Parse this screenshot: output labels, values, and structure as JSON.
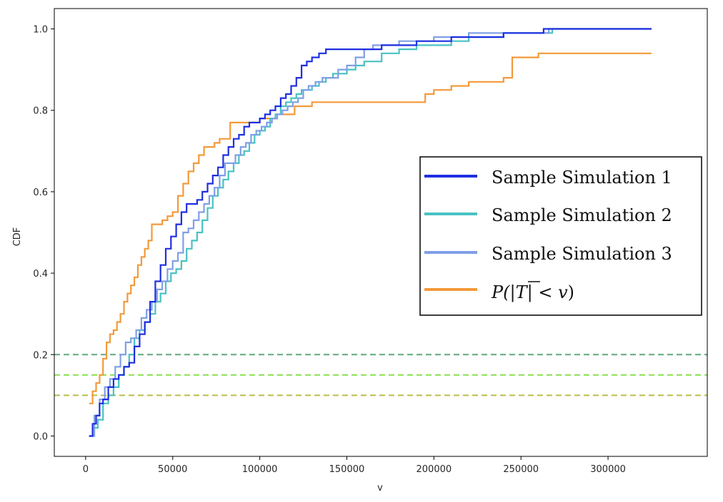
{
  "chart_data": {
    "type": "line",
    "title": "",
    "xlabel": "v",
    "ylabel": "CDF",
    "xlim": [
      -18000,
      357000
    ],
    "ylim": [
      -0.05,
      1.05
    ],
    "xticks": [
      0,
      50000,
      100000,
      150000,
      200000,
      250000,
      300000
    ],
    "xtick_labels": [
      "0",
      "50000",
      "100000",
      "150000",
      "200000",
      "250000",
      "300000"
    ],
    "yticks": [
      0.0,
      0.2,
      0.4,
      0.6,
      0.8,
      1.0
    ],
    "ytick_labels": [
      "0.0",
      "0.2",
      "0.4",
      "0.6",
      "0.8",
      "1.0"
    ],
    "legend_position": "center-right",
    "series": [
      {
        "name": "Sample Simulation 1",
        "color": "#1f2fe0",
        "x": [
          2000,
          4000,
          6000,
          8000,
          10000,
          13000,
          16000,
          19000,
          22000,
          25000,
          28000,
          31000,
          34000,
          37000,
          40000,
          43000,
          46000,
          49000,
          52000,
          55000,
          58000,
          61000,
          64000,
          67000,
          70000,
          73000,
          76000,
          79000,
          82000,
          85000,
          88000,
          91000,
          94000,
          97000,
          100000,
          103000,
          106000,
          109000,
          112000,
          115000,
          118000,
          121000,
          124000,
          127000,
          130000,
          134000,
          138000,
          142000,
          146000,
          150000,
          160000,
          170000,
          180000,
          190000,
          200000,
          210000,
          220000,
          230000,
          240000,
          250000,
          263000,
          270000,
          325000
        ],
        "y": [
          0.0,
          0.03,
          0.05,
          0.08,
          0.09,
          0.12,
          0.14,
          0.15,
          0.17,
          0.18,
          0.22,
          0.25,
          0.28,
          0.33,
          0.38,
          0.42,
          0.46,
          0.49,
          0.52,
          0.55,
          0.57,
          0.57,
          0.58,
          0.6,
          0.62,
          0.64,
          0.66,
          0.69,
          0.71,
          0.73,
          0.74,
          0.76,
          0.77,
          0.77,
          0.78,
          0.79,
          0.8,
          0.81,
          0.83,
          0.84,
          0.86,
          0.88,
          0.91,
          0.92,
          0.93,
          0.94,
          0.95,
          0.95,
          0.95,
          0.95,
          0.95,
          0.96,
          0.96,
          0.97,
          0.97,
          0.98,
          0.98,
          0.98,
          0.99,
          0.99,
          1.0,
          1.0,
          1.0
        ]
      },
      {
        "name": "Sample Simulation 2",
        "color": "#49c2c2",
        "x": [
          2000,
          4000,
          7000,
          10000,
          13000,
          16000,
          19000,
          22000,
          25000,
          28000,
          31000,
          34000,
          37000,
          40000,
          43000,
          46000,
          49000,
          52000,
          55000,
          58000,
          61000,
          64000,
          67000,
          70000,
          73000,
          76000,
          79000,
          82000,
          85000,
          88000,
          91000,
          94000,
          97000,
          100000,
          103000,
          106000,
          109000,
          112000,
          115000,
          118000,
          121000,
          124000,
          127000,
          130000,
          134000,
          138000,
          142000,
          146000,
          150000,
          155000,
          160000,
          170000,
          180000,
          190000,
          200000,
          210000,
          220000,
          230000,
          240000,
          250000,
          260000,
          268000,
          325000
        ],
        "y": [
          0.0,
          0.02,
          0.04,
          0.08,
          0.1,
          0.12,
          0.15,
          0.17,
          0.2,
          0.24,
          0.26,
          0.28,
          0.3,
          0.33,
          0.35,
          0.38,
          0.4,
          0.41,
          0.43,
          0.46,
          0.48,
          0.5,
          0.53,
          0.56,
          0.59,
          0.61,
          0.63,
          0.65,
          0.67,
          0.69,
          0.7,
          0.72,
          0.74,
          0.75,
          0.76,
          0.78,
          0.79,
          0.81,
          0.82,
          0.83,
          0.84,
          0.85,
          0.85,
          0.86,
          0.87,
          0.88,
          0.89,
          0.89,
          0.9,
          0.91,
          0.92,
          0.94,
          0.95,
          0.96,
          0.96,
          0.97,
          0.98,
          0.98,
          0.99,
          0.99,
          0.99,
          1.0,
          1.0
        ]
      },
      {
        "name": "Sample Simulation 3",
        "color": "#7f9fe6",
        "x": [
          2000,
          5000,
          8000,
          11000,
          14000,
          17000,
          20000,
          23000,
          26000,
          29000,
          32000,
          35000,
          38000,
          41000,
          44000,
          47000,
          50000,
          53000,
          56000,
          59000,
          62000,
          65000,
          68000,
          71000,
          74000,
          77000,
          80000,
          83000,
          86000,
          89000,
          92000,
          95000,
          98000,
          101000,
          104000,
          107000,
          110000,
          113000,
          116000,
          119000,
          122000,
          125000,
          128000,
          132000,
          136000,
          140000,
          145000,
          150000,
          155000,
          160000,
          165000,
          170000,
          180000,
          190000,
          200000,
          210000,
          220000,
          230000,
          240000,
          250000,
          260000,
          266000,
          325000
        ],
        "y": [
          0.0,
          0.05,
          0.09,
          0.12,
          0.14,
          0.17,
          0.2,
          0.23,
          0.24,
          0.26,
          0.29,
          0.31,
          0.33,
          0.36,
          0.38,
          0.41,
          0.43,
          0.45,
          0.5,
          0.51,
          0.53,
          0.55,
          0.57,
          0.59,
          0.61,
          0.64,
          0.67,
          0.67,
          0.69,
          0.71,
          0.72,
          0.74,
          0.75,
          0.76,
          0.77,
          0.78,
          0.79,
          0.8,
          0.81,
          0.82,
          0.83,
          0.85,
          0.86,
          0.87,
          0.88,
          0.88,
          0.9,
          0.91,
          0.93,
          0.95,
          0.96,
          0.96,
          0.97,
          0.97,
          0.98,
          0.98,
          0.99,
          0.99,
          0.99,
          0.99,
          0.99,
          1.0,
          1.0
        ]
      },
      {
        "name": "P(|T̄| < v)",
        "legend_parts": [
          "P(|",
          "T",
          "| < ",
          "v",
          ")"
        ],
        "color": "#f39a3a",
        "x": [
          2000,
          4000,
          6000,
          8000,
          10000,
          12000,
          14000,
          16000,
          18000,
          20000,
          22000,
          24000,
          26000,
          28000,
          30000,
          32000,
          34000,
          36000,
          38000,
          41000,
          44000,
          47000,
          50000,
          53000,
          56000,
          59000,
          62000,
          65000,
          68000,
          71000,
          74000,
          77000,
          80000,
          83000,
          90000,
          100000,
          110000,
          120000,
          130000,
          140000,
          150000,
          160000,
          170000,
          180000,
          190000,
          195000,
          200000,
          210000,
          220000,
          230000,
          240000,
          245000,
          250000,
          260000,
          280000,
          300000,
          325000
        ],
        "y": [
          0.08,
          0.11,
          0.13,
          0.15,
          0.19,
          0.23,
          0.25,
          0.26,
          0.28,
          0.3,
          0.33,
          0.35,
          0.37,
          0.39,
          0.42,
          0.44,
          0.46,
          0.48,
          0.52,
          0.52,
          0.53,
          0.54,
          0.55,
          0.59,
          0.62,
          0.65,
          0.67,
          0.69,
          0.71,
          0.71,
          0.72,
          0.73,
          0.73,
          0.77,
          0.77,
          0.78,
          0.79,
          0.81,
          0.82,
          0.82,
          0.82,
          0.82,
          0.82,
          0.82,
          0.82,
          0.84,
          0.85,
          0.86,
          0.87,
          0.87,
          0.88,
          0.93,
          0.93,
          0.94,
          0.94,
          0.94,
          0.94
        ]
      }
    ],
    "hlines": [
      {
        "y": 0.2,
        "color": "#5fa87a"
      },
      {
        "y": 0.15,
        "color": "#8be052"
      },
      {
        "y": 0.1,
        "color": "#b8bf48"
      }
    ]
  }
}
